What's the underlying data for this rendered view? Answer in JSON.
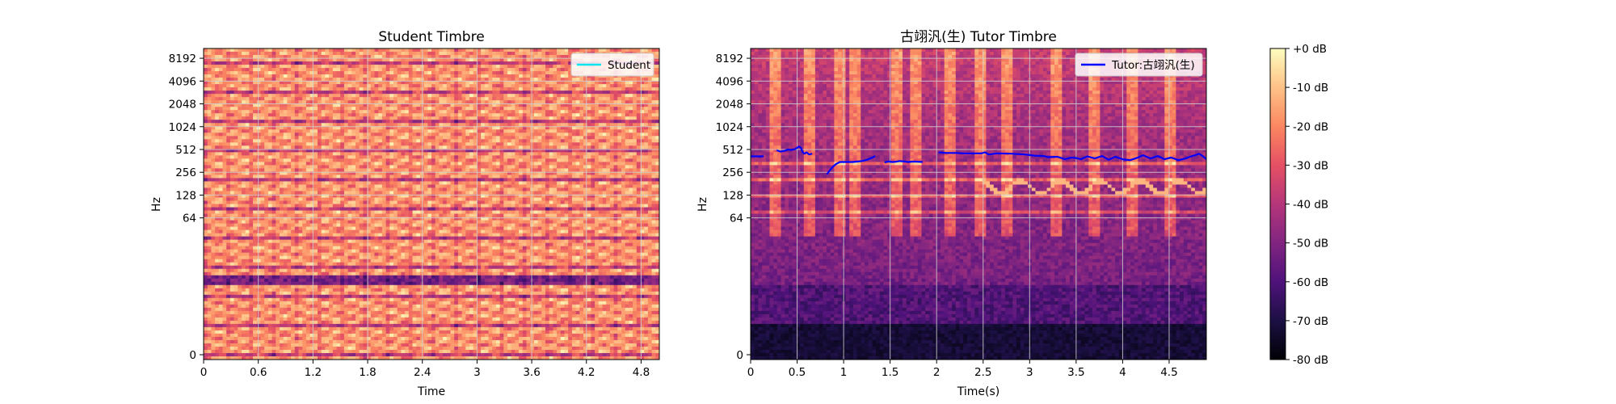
{
  "colorbar": {
    "ticks": [
      "+0 dB",
      "-10 dB",
      "-20 dB",
      "-30 dB",
      "-40 dB",
      "-50 dB",
      "-60 dB",
      "-70 dB",
      "-80 dB"
    ],
    "range_db": [
      -80,
      0
    ],
    "colormap": "magma"
  },
  "chart_data": [
    {
      "type": "heatmap",
      "title": "Student Timbre",
      "xlabel": "Time",
      "ylabel": "Hz",
      "xlim": [
        0,
        5.0
      ],
      "x_ticks": [
        0,
        0.6,
        1.2,
        1.8,
        2.4,
        3.0,
        3.6,
        4.2,
        4.8
      ],
      "x_tick_labels": [
        "0",
        "0.6",
        "1.2",
        "1.8",
        "2.4",
        "3",
        "3.6",
        "4.2",
        "4.8"
      ],
      "y_scale": "log2",
      "ylim": [
        0,
        11025
      ],
      "y_ticks": [
        0,
        64,
        128,
        256,
        512,
        1024,
        2048,
        4096,
        8192
      ],
      "y_tick_labels": [
        "0",
        "64",
        "128",
        "256",
        "512",
        "1024",
        "2048",
        "4096",
        "8192"
      ],
      "grid": true,
      "legend_position": "top-right",
      "series": [
        {
          "name": "Student",
          "color": "#00e5ee",
          "x": [],
          "y": []
        }
      ]
    },
    {
      "type": "heatmap",
      "title": "古翊汎(生) Tutor Timbre",
      "xlabel": "Time(s)",
      "ylabel": "Hz",
      "xlim": [
        0,
        4.9
      ],
      "x_ticks": [
        0,
        0.5,
        1.0,
        1.5,
        2.0,
        2.5,
        3.0,
        3.5,
        4.0,
        4.5
      ],
      "x_tick_labels": [
        "0",
        "0.5",
        "1",
        "1.5",
        "2",
        "2.5",
        "3",
        "3.5",
        "4",
        "4.5"
      ],
      "y_scale": "log2",
      "ylim": [
        0,
        11025
      ],
      "y_ticks": [
        0,
        64,
        128,
        256,
        512,
        1024,
        2048,
        4096,
        8192
      ],
      "y_tick_labels": [
        "0",
        "64",
        "128",
        "256",
        "512",
        "1024",
        "2048",
        "4096",
        "8192"
      ],
      "grid": true,
      "legend_position": "top-right",
      "series": [
        {
          "name": "Tutor:古翊汎(生)",
          "color": "#0000ff",
          "segments": [
            {
              "x": [
                0.0,
                0.08,
                0.14
              ],
              "y": [
                415,
                415,
                415
              ]
            },
            {
              "x": [
                0.28,
                0.32,
                0.36,
                0.4,
                0.44,
                0.48,
                0.52,
                0.54,
                0.56,
                0.58,
                0.6,
                0.63,
                0.66
              ],
              "y": [
                500,
                480,
                490,
                510,
                505,
                520,
                560,
                540,
                470,
                450,
                470,
                440,
                450
              ]
            },
            {
              "x": [
                0.82,
                0.85,
                0.88,
                0.92,
                0.96,
                1.0,
                1.05,
                1.1,
                1.15,
                1.2,
                1.25,
                1.3,
                1.34
              ],
              "y": [
                240,
                270,
                300,
                330,
                350,
                350,
                350,
                350,
                355,
                360,
                375,
                395,
                420
              ]
            },
            {
              "x": [
                1.44,
                1.48,
                1.52,
                1.56,
                1.6,
                1.65,
                1.7,
                1.75,
                1.8,
                1.85
              ],
              "y": [
                345,
                355,
                350,
                352,
                360,
                355,
                350,
                355,
                352,
                350
              ]
            },
            {
              "x": [
                2.02,
                2.1,
                2.2,
                2.3,
                2.4,
                2.48,
                2.52,
                2.56,
                2.65,
                2.8,
                2.95,
                3.05,
                3.15,
                3.2,
                3.3,
                3.38,
                3.45,
                3.5,
                3.55,
                3.62,
                3.7,
                3.78,
                3.85,
                3.92,
                4.0,
                4.08,
                4.15,
                4.22,
                4.3,
                4.38,
                4.45,
                4.52,
                4.6,
                4.68,
                4.72,
                4.78,
                4.82,
                4.86,
                4.9
              ],
              "y": [
                470,
                460,
                460,
                455,
                455,
                455,
                470,
                440,
                455,
                450,
                440,
                425,
                420,
                405,
                410,
                380,
                400,
                395,
                380,
                415,
                390,
                420,
                375,
                410,
                380,
                370,
                395,
                430,
                390,
                420,
                380,
                400,
                370,
                390,
                410,
                430,
                450,
                420,
                380
              ]
            }
          ]
        }
      ]
    }
  ]
}
